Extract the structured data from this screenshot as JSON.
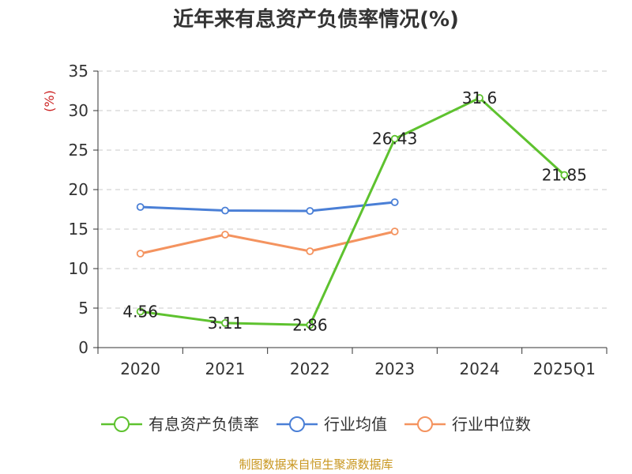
{
  "chart_data": {
    "type": "line",
    "title": "近年来有息资产负债率情况(%)",
    "ylabel": "(%)",
    "xlabel": "",
    "categories": [
      "2020",
      "2021",
      "2022",
      "2023",
      "2024",
      "2025Q1"
    ],
    "ylim": [
      0,
      35
    ],
    "yticks": [
      0,
      5,
      10,
      15,
      20,
      25,
      30,
      35
    ],
    "grid": true,
    "legend_position": "bottom",
    "series": [
      {
        "name": "有息资产负债率",
        "color": "#5ec22f",
        "values": [
          4.56,
          3.11,
          2.86,
          26.43,
          31.6,
          21.85
        ],
        "labels": [
          "4.56",
          "3.11",
          "2.86",
          "26.43",
          "31.6",
          "21.85"
        ]
      },
      {
        "name": "行业均值",
        "color": "#4a7fd6",
        "values": [
          17.8,
          17.35,
          17.3,
          18.4,
          null,
          null
        ]
      },
      {
        "name": "行业中位数",
        "color": "#f4935f",
        "values": [
          11.9,
          14.3,
          12.2,
          14.7,
          null,
          null
        ]
      }
    ]
  },
  "source_note": "制图数据来自恒生聚源数据库"
}
